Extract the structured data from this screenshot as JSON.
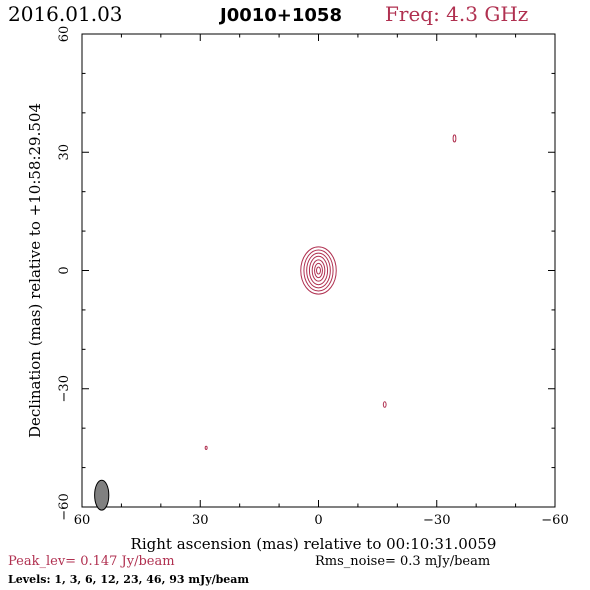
{
  "header": {
    "date": "2016.01.03",
    "source": "J0010+1058",
    "freq_label": "Freq: 4.3 GHz"
  },
  "footer": {
    "peak_label": "Peak_lev=  0.147 Jy/beam",
    "rms_label": "Rms_noise=   0.3 mJy/beam",
    "levels_label": "Levels:   1,   3,   6,  12,  23,  46,  93 mJy/beam"
  },
  "colors": {
    "contour": "#b03050",
    "beam_fill": "#808080",
    "axes": "#000000"
  },
  "chart_data": {
    "type": "contour",
    "title": "J0010+1058",
    "xlabel": "Right ascension (mas) relative to 00:10:31.0059",
    "ylabel": "Declination (mas) relative to +10:58:29.504",
    "xlim": [
      60,
      -60
    ],
    "ylim": [
      -60,
      60
    ],
    "x_ticks": [
      60,
      30,
      0,
      -30,
      -60
    ],
    "y_ticks": [
      -60,
      -30,
      0,
      30,
      60
    ],
    "x_tick_labels": [
      "60",
      "30",
      "0",
      "−30",
      "−60"
    ],
    "y_tick_labels": [
      "−60",
      "−30",
      "0",
      "30",
      "60"
    ],
    "contour_levels_mJy": [
      1,
      3,
      6,
      12,
      23,
      46,
      93
    ],
    "peak_Jy_per_beam": 0.147,
    "rms_noise_mJy_per_beam": 0.3,
    "components": [
      {
        "name": "core",
        "x": 0.0,
        "y": 0.0,
        "rings": [
          {
            "rx": 4.5,
            "ry": 6.0
          },
          {
            "rx": 3.7,
            "ry": 5.2
          },
          {
            "rx": 3.0,
            "ry": 4.4
          },
          {
            "rx": 2.3,
            "ry": 3.6
          },
          {
            "rx": 1.6,
            "ry": 2.7
          },
          {
            "rx": 1.0,
            "ry": 1.8
          },
          {
            "rx": 0.5,
            "ry": 0.9
          }
        ]
      },
      {
        "name": "feature-ne",
        "x": -34.5,
        "y": 33.5,
        "rings": [
          {
            "rx": 0.35,
            "ry": 0.9
          }
        ]
      },
      {
        "name": "feature-se",
        "x": -16.8,
        "y": -34.0,
        "rings": [
          {
            "rx": 0.35,
            "ry": 0.7
          }
        ]
      },
      {
        "name": "feature-sw",
        "x": 28.5,
        "y": -45.0,
        "rings": [
          {
            "rx": 0.25,
            "ry": 0.4
          }
        ]
      }
    ],
    "beam": {
      "x": 55.0,
      "y": -57.0,
      "rx": 1.8,
      "ry": 3.8
    }
  }
}
